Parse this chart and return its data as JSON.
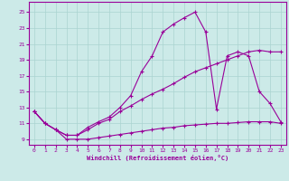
{
  "xlabel": "Windchill (Refroidissement éolien,°C)",
  "bg_color": "#cceae8",
  "grid_color": "#aad4d0",
  "line_color": "#990099",
  "xlim_min": -0.5,
  "xlim_max": 23.5,
  "ylim_min": 8.3,
  "ylim_max": 26.3,
  "xticks": [
    0,
    1,
    2,
    3,
    4,
    5,
    6,
    7,
    8,
    9,
    10,
    11,
    12,
    13,
    14,
    15,
    16,
    17,
    18,
    19,
    20,
    21,
    22,
    23
  ],
  "yticks": [
    9,
    11,
    13,
    15,
    17,
    19,
    21,
    23,
    25
  ],
  "line1_x": [
    0,
    1,
    2,
    3,
    4,
    5,
    6,
    7,
    8,
    9,
    10,
    11,
    12,
    13,
    14,
    15,
    16,
    17,
    18,
    19,
    20,
    21,
    22,
    23
  ],
  "line1_y": [
    12.5,
    11.0,
    10.2,
    9.0,
    9.0,
    9.0,
    9.2,
    9.4,
    9.6,
    9.8,
    10.0,
    10.2,
    10.4,
    10.5,
    10.7,
    10.8,
    10.9,
    11.0,
    11.0,
    11.1,
    11.2,
    11.2,
    11.2,
    11.0
  ],
  "line2_x": [
    0,
    1,
    2,
    3,
    4,
    5,
    6,
    7,
    8,
    9,
    10,
    11,
    12,
    13,
    14,
    15,
    16,
    17,
    18,
    19,
    20,
    21,
    22,
    23
  ],
  "line2_y": [
    12.5,
    11.0,
    10.2,
    9.5,
    9.5,
    10.2,
    11.0,
    11.5,
    12.5,
    13.2,
    14.0,
    14.7,
    15.3,
    16.0,
    16.8,
    17.5,
    18.0,
    18.5,
    19.0,
    19.5,
    20.0,
    20.2,
    20.0,
    20.0
  ],
  "line3_x": [
    0,
    1,
    2,
    3,
    4,
    5,
    6,
    7,
    8,
    9,
    10,
    11,
    12,
    13,
    14,
    15,
    16,
    17,
    18,
    19,
    20,
    21,
    22,
    23
  ],
  "line3_y": [
    12.5,
    11.0,
    10.2,
    9.5,
    9.5,
    10.5,
    11.2,
    11.8,
    13.0,
    14.5,
    17.5,
    19.5,
    22.5,
    23.5,
    24.3,
    25.0,
    22.5,
    12.8,
    19.5,
    20.0,
    19.5,
    15.0,
    13.5,
    11.2
  ]
}
